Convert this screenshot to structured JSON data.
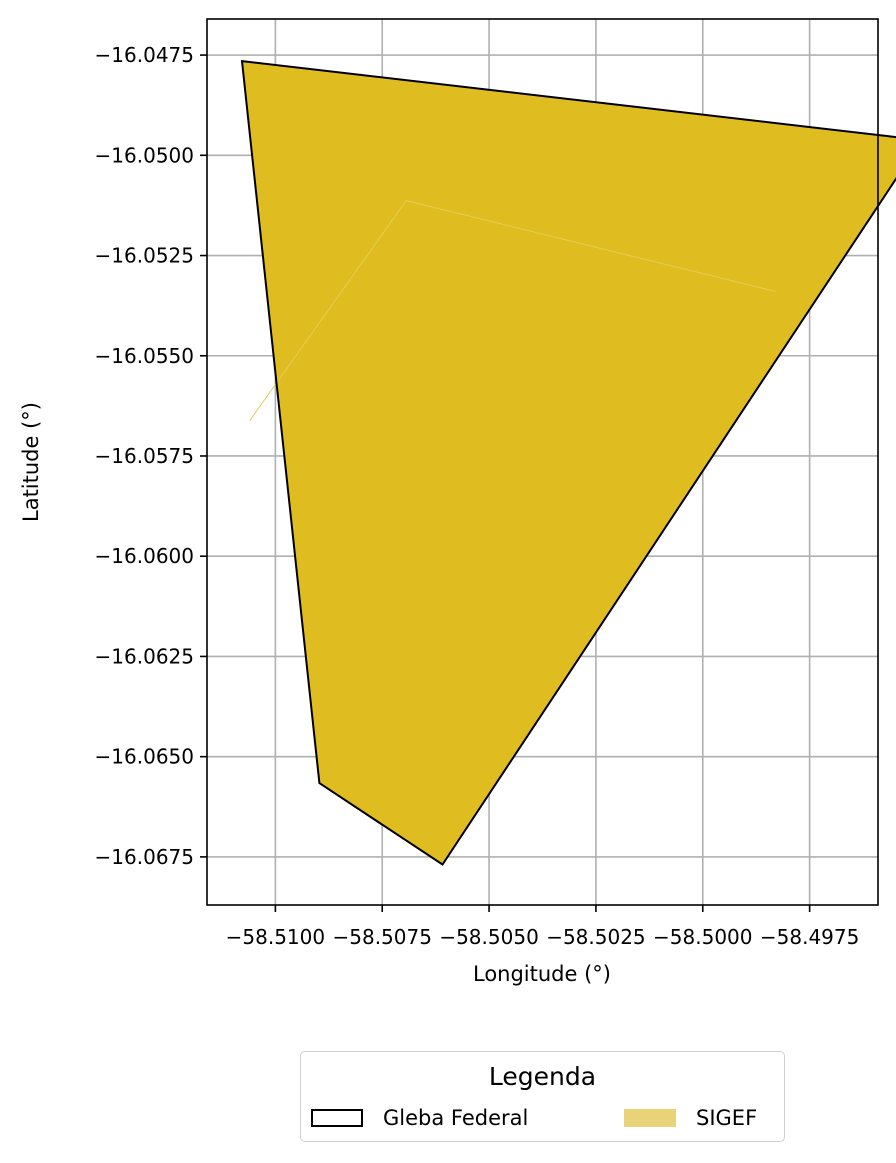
{
  "chart_data": {
    "type": "map",
    "xlabel": "Longitude (°)",
    "ylabel": "Latitude (°)",
    "xlim": [
      -58.5116,
      -58.4959
    ],
    "ylim": [
      -16.0687,
      -16.0466
    ],
    "x_ticks": [
      -58.51,
      -58.5075,
      -58.505,
      -58.5025,
      -58.5,
      -58.4975
    ],
    "x_tick_labels": [
      "−58.5100",
      "−58.5075",
      "−58.5050",
      "−58.5025",
      "−58.5000",
      "−58.4975"
    ],
    "y_ticks": [
      -16.0475,
      -16.05,
      -16.0525,
      -16.055,
      -16.0575,
      -16.06,
      -16.0625,
      -16.065,
      -16.0675
    ],
    "y_tick_labels": [
      "−16.0475",
      "−16.0500",
      "−16.0525",
      "−16.0550",
      "−16.0575",
      "−16.0600",
      "−16.0625",
      "−16.0650",
      "−16.0675"
    ],
    "grid": true,
    "layers": [
      {
        "name": "SIGEF",
        "style": "fill",
        "color": "#dfbd20",
        "polygon": [
          [
            -58.51078,
            -16.04765
          ],
          [
            -58.49488,
            -16.04962
          ],
          [
            -58.50609,
            -16.06769
          ],
          [
            -58.50897,
            -16.06566
          ]
        ]
      },
      {
        "name": "SIGEF",
        "style": "inner-outline",
        "color": "#e6cc55",
        "polyline": [
          [
            -58.5106,
            -16.05662
          ],
          [
            -58.50694,
            -16.05113
          ],
          [
            -58.49828,
            -16.0534
          ]
        ]
      },
      {
        "name": "Gleba Federal",
        "style": "outline",
        "color": "#000000",
        "polygon": [
          [
            -58.51078,
            -16.04765
          ],
          [
            -58.49488,
            -16.04962
          ],
          [
            -58.50609,
            -16.06769
          ],
          [
            -58.50897,
            -16.06566
          ]
        ]
      }
    ],
    "legend": {
      "title": "Legenda",
      "placement": "bottom-center",
      "items": [
        {
          "label": "Gleba Federal",
          "kind": "outline"
        },
        {
          "label": "SIGEF",
          "kind": "fill",
          "color": "#e8d378"
        }
      ]
    }
  }
}
